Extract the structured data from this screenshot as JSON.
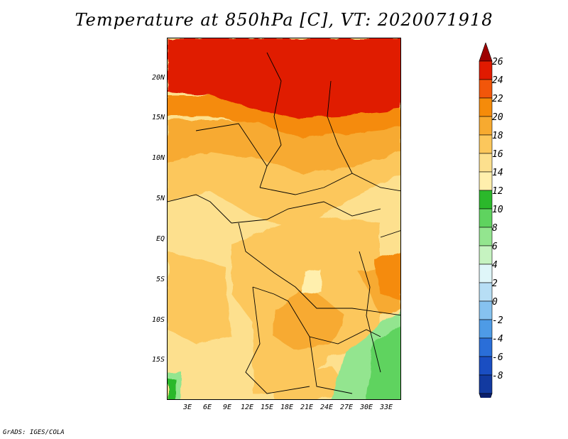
{
  "title": "Temperature at 850hPa [C], VT: 2020071918",
  "credit": "GrADS: IGES/COLA",
  "map": {
    "lat_ticks": [
      "20N",
      "15N",
      "10N",
      "5N",
      "EQ",
      "5S",
      "10S",
      "15S"
    ],
    "lon_ticks": [
      "3E",
      "6E",
      "9E",
      "12E",
      "15E",
      "18E",
      "21E",
      "24E",
      "27E",
      "30E",
      "33E"
    ]
  },
  "colorbar": {
    "labels": [
      "26",
      "24",
      "22",
      "20",
      "18",
      "16",
      "14",
      "12",
      "10",
      "8",
      "6",
      "4",
      "2",
      "0",
      "-2",
      "-4",
      "-6",
      "-8"
    ],
    "colors": [
      "#9e0000",
      "#e01a00",
      "#f2560a",
      "#f58b0a",
      "#f7aa30",
      "#fcc75c",
      "#fde08e",
      "#ffefad",
      "#2bb82b",
      "#5fd35f",
      "#93e58f",
      "#c6f3c1",
      "#dff6f9",
      "#b7def5",
      "#86c2ef",
      "#4e9be6",
      "#2a6ed8",
      "#1a4ec2",
      "#123aa0",
      "#0a1f6e"
    ]
  }
}
